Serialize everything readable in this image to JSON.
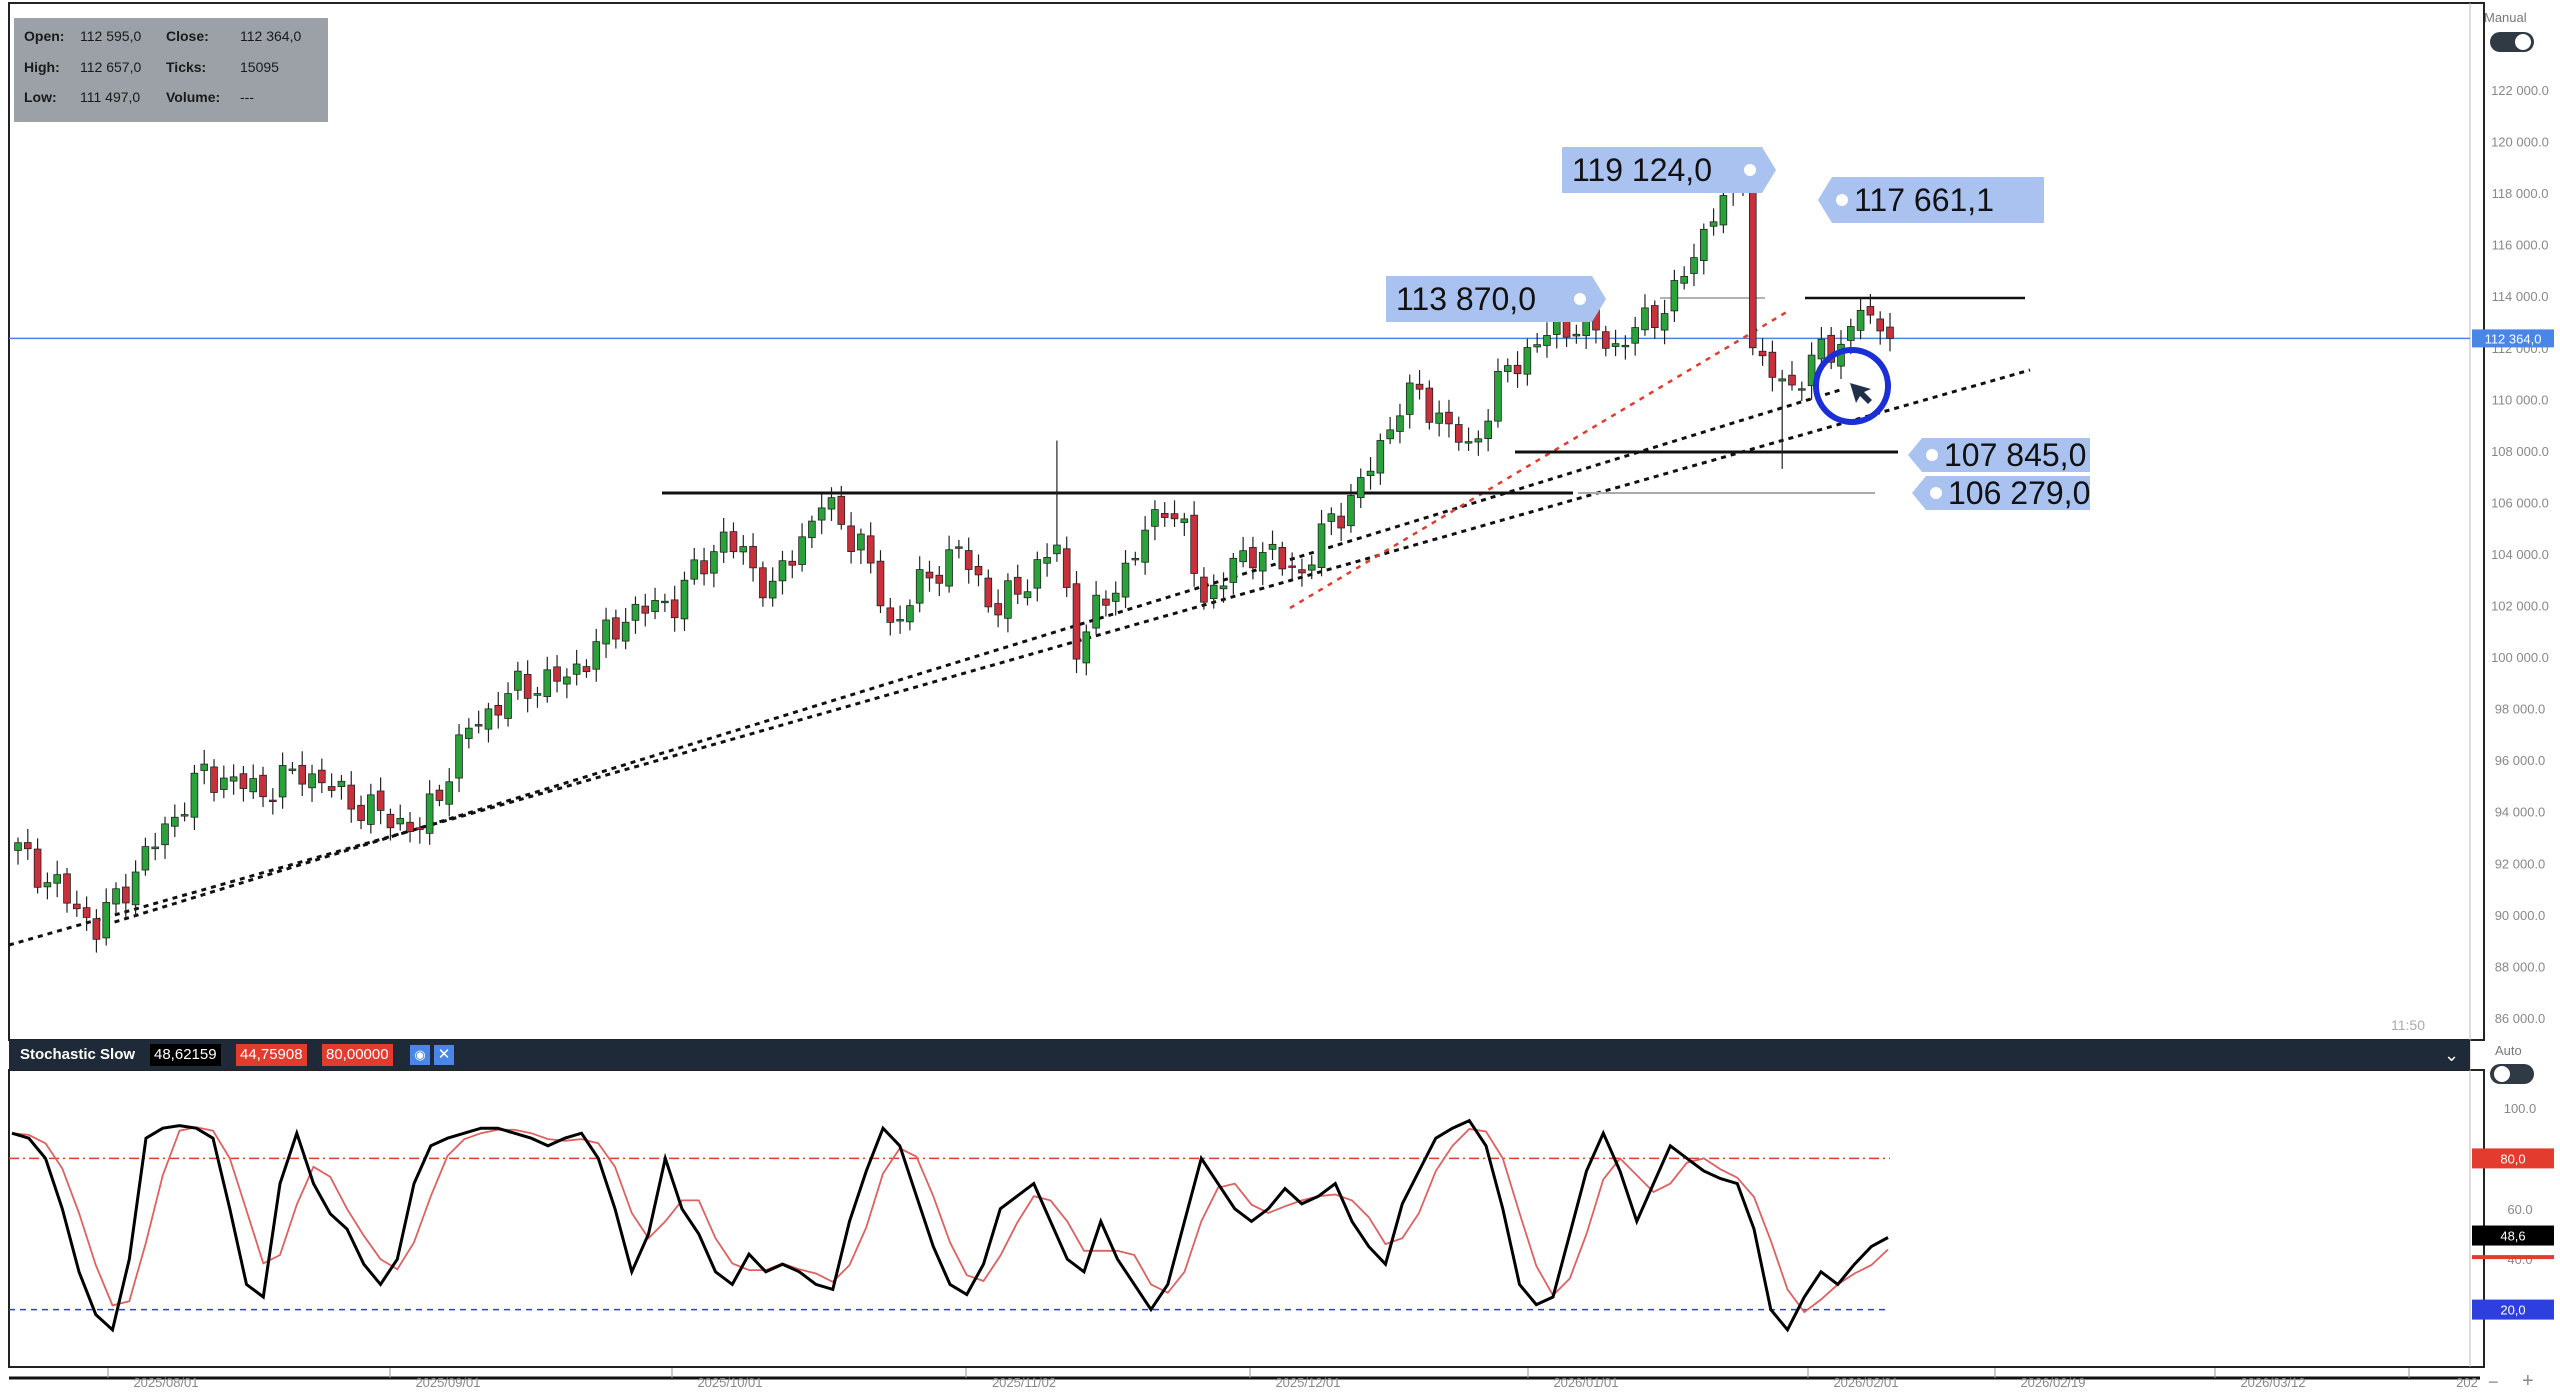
{
  "ohlc_panel": {
    "open_label": "Open:",
    "open_value": "112 595,0",
    "close_label": "Close:",
    "close_value": "112 364,0",
    "high_label": "High:",
    "high_value": "112 657,0",
    "ticks_label": "Ticks:",
    "ticks_value": "15095",
    "low_label": "Low:",
    "low_value": "111 497,0",
    "volume_label": "Volume:",
    "volume_value": "---"
  },
  "price_axis": {
    "mode_label": "Manual",
    "ticks": [
      "122 000.0",
      "120 000.0",
      "118 000.0",
      "116 000.0",
      "114 000.0",
      "112 000.0",
      "110 000.0",
      "108 000.0",
      "106 000.0",
      "104 000.0",
      "102 000.0",
      "100 000.0",
      "98 000.0",
      "96 000.0",
      "94 000.0",
      "92 000.0",
      "90 000.0",
      "88 000.0",
      "86 000.0"
    ],
    "current_price_label": "112 364,0",
    "time_remaining": "11:50"
  },
  "annotations": {
    "high_119": "119 124,0",
    "level_117": "117 661,1",
    "level_113": "113 870,0",
    "level_107": "107 845,0",
    "level_106": "106 279,0"
  },
  "stochastic": {
    "name": "Stochastic Slow",
    "k_value": "48,62159",
    "d_value": "44,75908",
    "level_value": "80,00000",
    "mode_label": "Auto",
    "axis_ticks": [
      "100.0",
      "60.0",
      "40.0"
    ],
    "upper_level_label": "80,0",
    "lower_level_label": "20,0",
    "current_label": "48,6"
  },
  "time_axis": {
    "labels": [
      "2025/08/01",
      "2025/09/01",
      "2025/10/01",
      "2025/11/02",
      "2025/12/01",
      "2026/01/01",
      "2026/02/01",
      "2026/02/19",
      "2026/03/12",
      "202"
    ]
  },
  "colors": {
    "bull": "#2aa23a",
    "bear": "#c8303c",
    "price_line": "#4a86e8",
    "stoch_k": "#000000",
    "stoch_d": "#e06060",
    "level_80": "#e33b2e",
    "level_20": "#2e3fe0",
    "annotation_bg": "#aac2f0"
  },
  "chart_data": {
    "type": "candlestick",
    "symbol_price_range": [
      85000,
      123000
    ],
    "date_labels": [
      "2025/08/01",
      "2025/09/01",
      "2025/10/01",
      "2025/11/02",
      "2025/12/01",
      "2026/01/01",
      "2026/02/01"
    ],
    "key_levels": [
      119124.0,
      117661.1,
      113870.0,
      107845.0,
      106279.0
    ],
    "last_close": 112364.0,
    "stochastic": {
      "k_last": 48.62159,
      "d_last": 44.75908,
      "upper": 80,
      "lower": 20
    }
  }
}
